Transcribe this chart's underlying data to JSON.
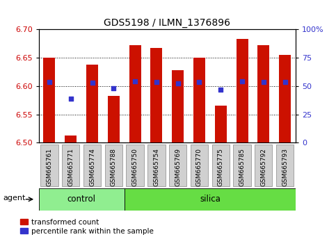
{
  "title": "GDS5198 / ILMN_1376896",
  "samples": [
    "GSM665761",
    "GSM665771",
    "GSM665774",
    "GSM665788",
    "GSM665750",
    "GSM665754",
    "GSM665769",
    "GSM665770",
    "GSM665775",
    "GSM665785",
    "GSM665792",
    "GSM665793"
  ],
  "bar_tops": [
    6.65,
    6.513,
    6.638,
    6.583,
    6.672,
    6.667,
    6.628,
    6.65,
    6.565,
    6.683,
    6.672,
    6.655
  ],
  "bar_bottom": 6.5,
  "blue_dots": [
    6.607,
    6.578,
    6.606,
    6.596,
    6.608,
    6.607,
    6.605,
    6.607,
    6.594,
    6.608,
    6.607,
    6.607
  ],
  "n_control": 4,
  "n_silica": 8,
  "ylim": [
    6.5,
    6.7
  ],
  "yticks_left": [
    6.5,
    6.55,
    6.6,
    6.65,
    6.7
  ],
  "yticks_right": [
    0,
    25,
    50,
    75,
    100
  ],
  "bar_color": "#cc1100",
  "dot_color": "#3333cc",
  "control_color": "#90ee90",
  "silica_color": "#66dd44",
  "agent_label": "agent",
  "control_label": "control",
  "silica_label": "silica",
  "legend_bar": "transformed count",
  "legend_dot": "percentile rank within the sample",
  "title_fontsize": 10,
  "axis_fontsize": 8,
  "label_fontsize": 8.5,
  "xtick_fontsize": 6.5,
  "xtick_gray": "#d0d0d0",
  "xtick_border": "#888888"
}
